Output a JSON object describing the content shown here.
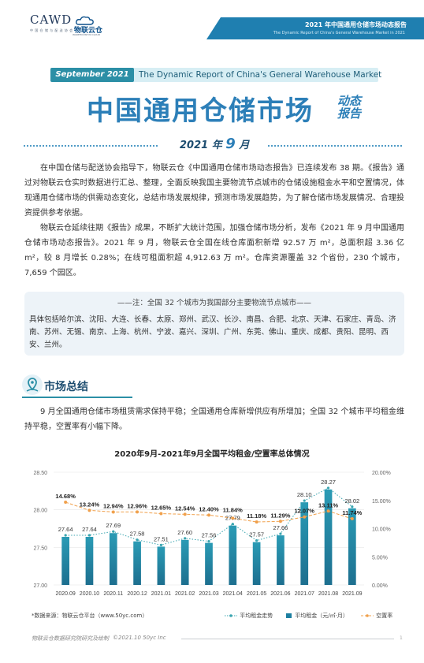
{
  "header": {
    "logo_cawd": "CAWD",
    "logo_cawd_sub": "中 国 仓 储 与 配 送 协 会",
    "logo_wl": "物联云仓",
    "logo_wl_sub": "WAREHOUSE IN CLOUD",
    "report_title_cn": "2021 年中国通用仓储市场动态报告",
    "report_title_en": "The Dynamic Report of China's General Warehouse Market in 2021"
  },
  "banner": {
    "month": "September 2021",
    "english": "The Dynamic Report of China's General Warehouse Market",
    "main_title": "中国通用仓储市场",
    "side_line1": "动态",
    "side_line2": "报告",
    "date_year": "2021 年",
    "date_month": "9",
    "date_unit": "月"
  },
  "intro": {
    "p1": "在中国仓储与配送协会指导下，物联云仓《中国通用仓储市场动态报告》已连续发布 38 期。《报告》通过对物联云仓实时数据进行汇总、整理，全面反映我国主要物流节点城市的仓储设施租金水平和空置情况，体现通用仓储市场的供需动态变化，总结市场发展规律，预测市场发展趋势，为了解仓储市场发展情况、合理投资提供参考依据。",
    "p2": "物联云仓延续往期《报告》成果，不断扩大统计范围，加强仓储市场分析，发布《2021 年 9 月中国通用仓储市场动态报告》。2021 年 9 月，物联云仓全国在线仓库面积新增 92.57 万 m²，总面积超 3.36 亿 m²，较 8 月增长 0.28%；在线可租面积超 4,912.63 万 m²。仓库资源覆盖 32 个省份，230 个城市，7,659 个园区。"
  },
  "note": {
    "heading": "——注：全国 32 个城市为我国部分主要物流节点城市——",
    "body": "具体包括哈尔滨、沈阳、大连、长春、太原、郑州、武汉、长沙、南昌、合肥、北京、天津、石家庄、青岛、济南、苏州、无锡、南京、上海、杭州、宁波、嘉兴、深圳、广州、东莞、佛山、重庆、成都、贵阳、昆明、西安、兰州。"
  },
  "section": {
    "title": "市场总结",
    "summary": "9 月全国通用仓储市场租赁需求保持平稳；全国通用仓库新增供应有所增加；全国 32 个城市平均租金维持平稳，空置率有小幅下降。"
  },
  "chart_data": {
    "type": "bar",
    "title": "2020年9月-2021年9月全国平均租金/空置率总体情况",
    "categories": [
      "2020.09",
      "2020.10",
      "2020.11",
      "2020.12",
      "2021.01",
      "2021.02",
      "2021.03",
      "2021.04",
      "2021.05",
      "2021.06",
      "2021.07",
      "2021.08",
      "2021.09"
    ],
    "series": [
      {
        "name": "平均租金（元/㎡·月）",
        "kind": "bar",
        "axis": "left",
        "values": [
          27.64,
          27.64,
          27.69,
          27.58,
          27.51,
          27.6,
          27.56,
          27.79,
          27.57,
          27.66,
          28.1,
          28.27,
          28.02
        ],
        "labels": [
          "27.64",
          "27.64",
          "27.69",
          "27.58",
          "27.51",
          "27.60",
          "27.56",
          "27.79",
          "27.57",
          "27.66",
          "28.10",
          "28.27",
          "28.02"
        ]
      },
      {
        "name": "平均租金走势",
        "kind": "dotted-line",
        "axis": "left",
        "values": [
          27.64,
          27.64,
          27.69,
          27.58,
          27.51,
          27.6,
          27.56,
          27.79,
          27.57,
          27.66,
          28.1,
          28.27,
          28.02
        ]
      },
      {
        "name": "空置率",
        "kind": "dashed-line",
        "axis": "right",
        "values": [
          14.68,
          13.24,
          12.94,
          12.96,
          12.65,
          12.54,
          12.4,
          11.84,
          11.18,
          11.29,
          12.07,
          13.11,
          11.74
        ],
        "labels": [
          "14.68%",
          "13.24%",
          "12.94%",
          "12.96%",
          "12.65%",
          "12.54%",
          "12.40%",
          "11.84%",
          "11.18%",
          "11.29%",
          "12.07%",
          "13.11%",
          "11.74%"
        ]
      }
    ],
    "ylim_left": [
      27.0,
      28.5
    ],
    "yticks_left": [
      "27.00",
      "27.50",
      "28.00",
      "28.50"
    ],
    "ylim_right": [
      0,
      20
    ],
    "yticks_right": [
      "0.00%",
      "5.00%",
      "10.00%",
      "15.00%",
      "20.00%"
    ],
    "grid": true,
    "legend_position": "bottom-right",
    "colors": {
      "bar_top": "#2a9bb5",
      "bar_bottom": "#1d6f8f",
      "trend": "#3aa5b0",
      "vacancy": "#f0a04b"
    }
  },
  "chart_footer": {
    "source": "*数据来源：物联云仓平台（www.50yc.com）"
  },
  "footer": {
    "left": "物联云仓数据研究院研究及绘制",
    "right": "©2021.10 50yc Inc",
    "page": "1"
  }
}
